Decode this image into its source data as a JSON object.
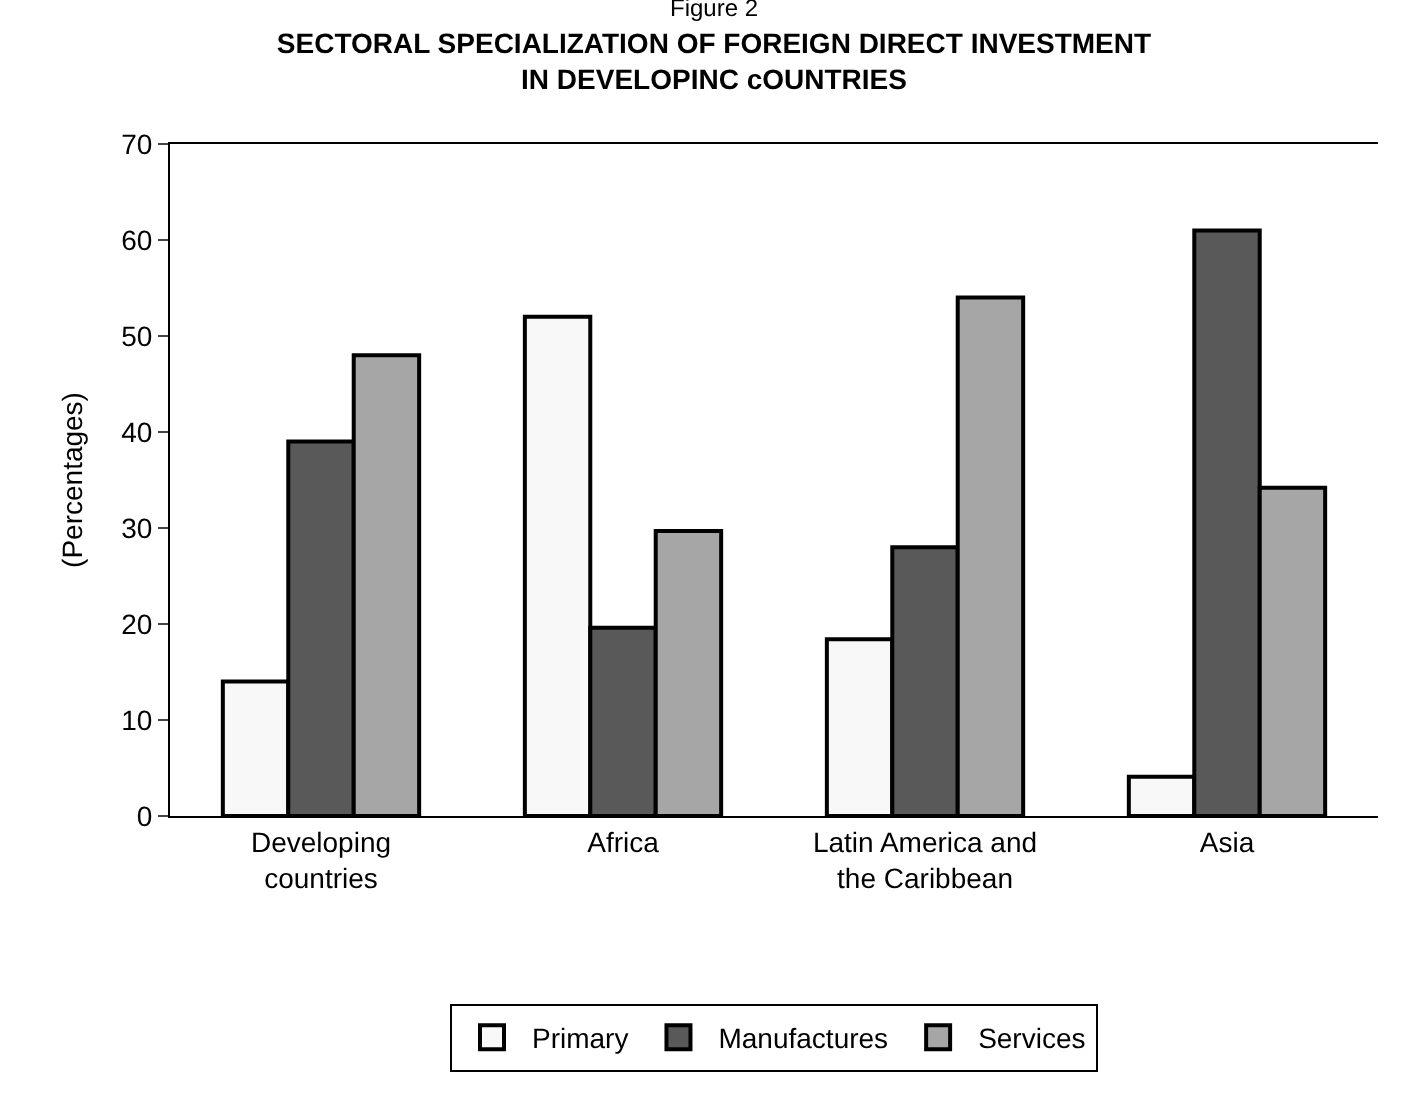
{
  "chart_data": {
    "type": "bar",
    "title": "Figure 2",
    "subtitle": "SECTORAL SPECIALIZATION OF FOREIGN DIRECT INVESTMENT\nIN DEVELOPINC cOUNTRIES",
    "ylabel": "(Percentages)",
    "categories": [
      "Developing\ncountries",
      "Africa",
      "Latin America and\nthe Caribbean",
      "Asia"
    ],
    "series": [
      {
        "name": "Primary",
        "color": "#f8f8f8",
        "values": [
          14,
          52,
          18.4,
          4.1
        ]
      },
      {
        "name": "Manufactures",
        "color": "#595959",
        "values": [
          39,
          19.6,
          28,
          61
        ]
      },
      {
        "name": "Services",
        "color": "#a6a6a6",
        "values": [
          48,
          29.7,
          54,
          34.2
        ]
      }
    ],
    "ylim": [
      0,
      70
    ],
    "yticks": [
      0,
      10,
      20,
      30,
      40,
      50,
      60,
      70
    ],
    "grid": false,
    "legend": "bottom"
  }
}
